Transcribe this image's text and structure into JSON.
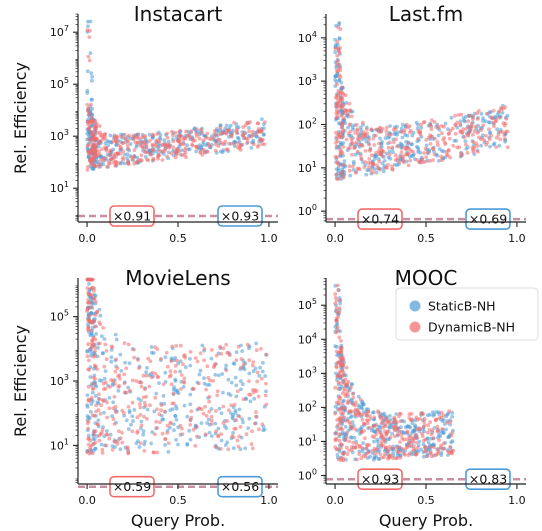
{
  "chart_data": [
    {
      "type": "scatter",
      "title": "Instacart",
      "xlabel": "",
      "ylabel": "Rel. Efficiency",
      "xlim": [
        -0.05,
        1.05
      ],
      "ylim_log10": [
        -0.3,
        7.7
      ],
      "ytick_exponents": [
        1,
        3,
        5,
        7
      ],
      "xticks": [
        "0.0",
        "0.5",
        "1.0"
      ],
      "log_y": true,
      "series": [
        {
          "name": "StaticB-NH",
          "color": "#4c9bd6",
          "ratio_label": "×0.93",
          "ratio_value": 0.93
        },
        {
          "name": "DynamicB-NH",
          "color": "#f26b6b",
          "ratio_label": "×0.91",
          "ratio_value": 0.91
        }
      ],
      "cloud": {
        "x_max": 0.98,
        "start_log": 3.2,
        "floor_log": 1.7,
        "floor_growth": 0.9,
        "spread": 1.1,
        "tail_max": 7.6
      }
    },
    {
      "type": "scatter",
      "title": "Last.fm",
      "xlabel": "",
      "ylabel": "",
      "xlim": [
        -0.05,
        1.05
      ],
      "ylim_log10": [
        -0.25,
        4.55
      ],
      "ytick_exponents": [
        0,
        1,
        2,
        3,
        4
      ],
      "xticks": [
        "0.0",
        "0.5",
        "1.0"
      ],
      "log_y": true,
      "series": [
        {
          "name": "StaticB-NH",
          "color": "#4c9bd6",
          "ratio_label": "×0.69",
          "ratio_value": 0.69
        },
        {
          "name": "DynamicB-NH",
          "color": "#f26b6b",
          "ratio_label": "×0.74",
          "ratio_value": 0.74
        }
      ],
      "cloud": {
        "x_max": 0.95,
        "start_log": 3.0,
        "floor_log": 0.7,
        "floor_growth": 0.8,
        "spread": 1.0,
        "tail_max": 4.4
      }
    },
    {
      "type": "scatter",
      "title": "MovieLens",
      "xlabel": "Query Prob.",
      "ylabel": "Rel. Efficiency",
      "xlim": [
        -0.05,
        1.05
      ],
      "ylim_log10": [
        -0.2,
        6.2
      ],
      "ytick_exponents": [
        1,
        3,
        5
      ],
      "xticks": [
        "0.0",
        "0.5",
        "1.0"
      ],
      "log_y": true,
      "series": [
        {
          "name": "StaticB-NH",
          "color": "#4c9bd6",
          "ratio_label": "×0.56",
          "ratio_value": 0.56
        },
        {
          "name": "DynamicB-NH",
          "color": "#f26b6b",
          "ratio_label": "×0.59",
          "ratio_value": 0.59
        }
      ],
      "cloud": {
        "x_max": 0.99,
        "start_log": 4.5,
        "floor_log": 0.7,
        "floor_growth": 0.2,
        "spread": 3.3,
        "tail_max": 5.9
      }
    },
    {
      "type": "scatter",
      "title": "MOOC",
      "xlabel": "Query Prob.",
      "ylabel": "",
      "xlim": [
        -0.05,
        1.05
      ],
      "ylim_log10": [
        -0.25,
        5.8
      ],
      "ytick_exponents": [
        0,
        1,
        2,
        3,
        4,
        5
      ],
      "xticks": [
        "0.0",
        "0.5",
        "1.0"
      ],
      "log_y": true,
      "series": [
        {
          "name": "StaticB-NH",
          "color": "#4c9bd6",
          "ratio_label": "×0.83",
          "ratio_value": 0.83
        },
        {
          "name": "DynamicB-NH",
          "color": "#f26b6b",
          "ratio_label": "×0.93",
          "ratio_value": 0.93
        }
      ],
      "cloud": {
        "x_max": 0.65,
        "start_log": 4.0,
        "floor_log": 0.4,
        "floor_growth": 0.3,
        "spread": 1.3,
        "tail_max": 5.6
      }
    }
  ],
  "legend": {
    "placement": "right of MOOC panel, upper area",
    "items": [
      {
        "name": "StaticB-NH",
        "color": "#4c9bd6"
      },
      {
        "name": "DynamicB-NH",
        "color": "#f26b6b"
      }
    ]
  },
  "reference_line_color": "#c98fa0"
}
